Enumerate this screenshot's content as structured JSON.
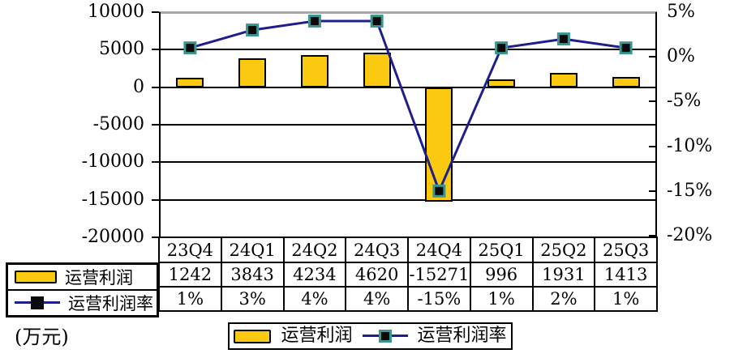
{
  "unit_label": "(万元)",
  "colors": {
    "bar_fill": "#FBC910",
    "bar_border": "#000000",
    "line": "#1F1F8C",
    "marker_fill": "#0A0A0A",
    "marker_border": "#3A968E",
    "gridline": "#000000",
    "top_gridline": "#A6A6A6"
  },
  "chart_data": {
    "type": "bar+line combo",
    "categories": [
      "23Q4",
      "24Q1",
      "24Q2",
      "24Q3",
      "24Q4",
      "25Q1",
      "25Q2",
      "25Q3"
    ],
    "series": [
      {
        "name": "运营利润",
        "type": "bar",
        "axis": "left",
        "values": [
          1242,
          3843,
          4234,
          4620,
          -15271,
          996,
          1931,
          1413
        ]
      },
      {
        "name": "运营利润率",
        "type": "line",
        "axis": "right",
        "values": [
          1,
          3,
          4,
          4,
          -15,
          1,
          2,
          1
        ],
        "labels": [
          "1%",
          "3%",
          "4%",
          "4%",
          "-15%",
          "1%",
          "2%",
          "1%"
        ]
      }
    ],
    "left_axis": {
      "min": -20000,
      "max": 10000,
      "ticks": [
        "10000",
        "5000",
        "0",
        "-5000",
        "-10000",
        "-15000",
        "-20000"
      ]
    },
    "right_axis": {
      "min": -20,
      "max": 5,
      "ticks": [
        "5%",
        "0%",
        "-5%",
        "-10%",
        "-15%",
        "-20%"
      ]
    },
    "grid": true,
    "legend_position": "bottom"
  },
  "table": {
    "row1_label": "运营利润",
    "row2_label": "运营利润率",
    "row1_values": [
      "1242",
      "3843",
      "4234",
      "4620",
      "-15271",
      "996",
      "1931",
      "1413"
    ],
    "row2_values": [
      "1%",
      "3%",
      "4%",
      "4%",
      "-15%",
      "1%",
      "2%",
      "1%"
    ]
  },
  "legend": {
    "items": [
      {
        "label": "运营利润",
        "type": "bar"
      },
      {
        "label": "运营利润率",
        "type": "line"
      }
    ]
  }
}
